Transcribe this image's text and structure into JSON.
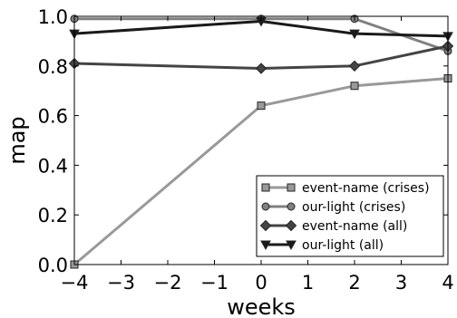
{
  "chart_data": {
    "type": "line",
    "xlabel": "weeks",
    "ylabel": "map",
    "xlim": [
      -4,
      4
    ],
    "ylim": [
      0.0,
      1.0
    ],
    "x_ticks": [
      "−4",
      "−3",
      "−2",
      "−1",
      "0",
      "1",
      "2",
      "3",
      "4"
    ],
    "y_ticks": [
      "0.0",
      "0.2",
      "0.4",
      "0.6",
      "0.8",
      "1.0"
    ],
    "grid": false,
    "legend_position": "bottom-right",
    "series": [
      {
        "name": "event-name (crises)",
        "marker": "square",
        "color": "#999999",
        "points": [
          [
            -4,
            0.0
          ],
          [
            0,
            0.64
          ],
          [
            2,
            0.72
          ],
          [
            4,
            0.75
          ]
        ]
      },
      {
        "name": "our-light (crises)",
        "marker": "circle",
        "color": "#808080",
        "points": [
          [
            -4,
            0.99
          ],
          [
            0,
            0.99
          ],
          [
            2,
            0.99
          ],
          [
            4,
            0.86
          ]
        ]
      },
      {
        "name": "event-name (all)",
        "marker": "diamond",
        "color": "#444444",
        "points": [
          [
            -4,
            0.81
          ],
          [
            0,
            0.79
          ],
          [
            2,
            0.8
          ],
          [
            4,
            0.88
          ]
        ]
      },
      {
        "name": "our-light (all)",
        "marker": "triangle-down",
        "color": "#1a1a1a",
        "points": [
          [
            -4,
            0.93
          ],
          [
            0,
            0.98
          ],
          [
            2,
            0.93
          ],
          [
            4,
            0.92
          ]
        ]
      }
    ]
  }
}
